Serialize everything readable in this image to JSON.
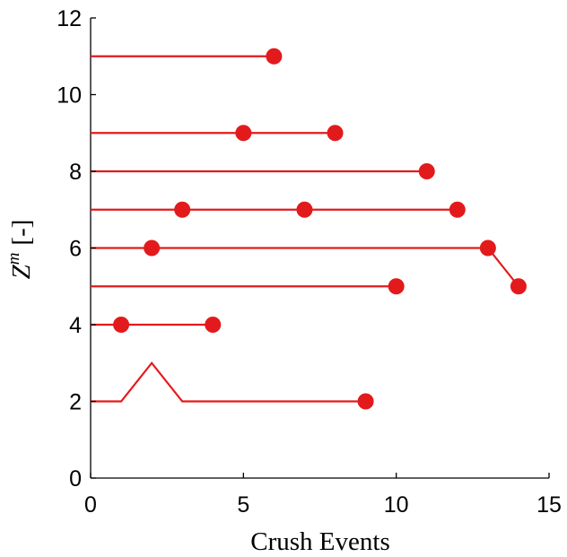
{
  "chart_data": {
    "type": "line",
    "title": "",
    "xlabel": "Crush Events",
    "ylabel": {
      "symbol": "Z",
      "superscript": "m",
      "unit": "[-]"
    },
    "xlim": [
      0,
      15
    ],
    "ylim": [
      0,
      12
    ],
    "xticks": [
      0,
      5,
      10,
      15
    ],
    "yticks": [
      0,
      2,
      4,
      6,
      8,
      10,
      12
    ],
    "grid": false,
    "legend": "none",
    "color": "#e31a1c",
    "series": [
      {
        "x": [
          0,
          6
        ],
        "y": [
          11,
          11
        ],
        "markers": [
          [
            6,
            11
          ]
        ]
      },
      {
        "x": [
          0,
          5,
          8
        ],
        "y": [
          9,
          9,
          9
        ],
        "markers": [
          [
            5,
            9
          ],
          [
            8,
            9
          ]
        ]
      },
      {
        "x": [
          0,
          11
        ],
        "y": [
          8,
          8
        ],
        "markers": [
          [
            11,
            8
          ]
        ]
      },
      {
        "x": [
          0,
          3,
          7,
          12
        ],
        "y": [
          7,
          7,
          7,
          7
        ],
        "markers": [
          [
            3,
            7
          ],
          [
            7,
            7
          ],
          [
            12,
            7
          ]
        ]
      },
      {
        "x": [
          0,
          2,
          13,
          14
        ],
        "y": [
          6,
          6,
          6,
          5
        ],
        "markers": [
          [
            2,
            6
          ],
          [
            13,
            6
          ],
          [
            14,
            5
          ]
        ]
      },
      {
        "x": [
          0,
          10
        ],
        "y": [
          5,
          5
        ],
        "markers": [
          [
            10,
            5
          ]
        ]
      },
      {
        "x": [
          0,
          1,
          4
        ],
        "y": [
          4,
          4,
          4
        ],
        "markers": [
          [
            1,
            4
          ],
          [
            4,
            4
          ]
        ]
      },
      {
        "x": [
          0,
          1,
          2,
          3,
          9
        ],
        "y": [
          2,
          2,
          3,
          2,
          2
        ],
        "markers": [
          [
            9,
            2
          ]
        ]
      }
    ]
  }
}
